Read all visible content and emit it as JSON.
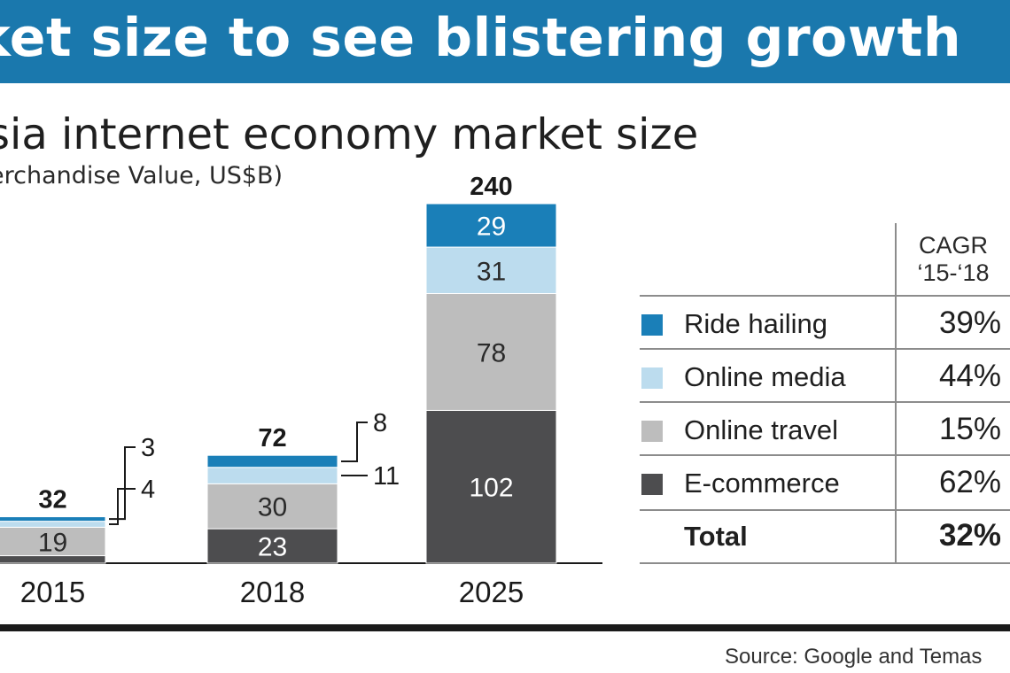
{
  "header": {
    "title": "ket size to see blistering growth"
  },
  "subtitle": "sia internet economy market size",
  "unit_label": "erchandise Value, US$B)",
  "colors": {
    "ride_hailing": "#1a7fb8",
    "online_media": "#bcdcee",
    "online_travel": "#bdbdbd",
    "e_commerce": "#4d4d4f",
    "banner": "#1a78ad"
  },
  "chart_data": {
    "type": "bar",
    "stacked": true,
    "categories": [
      "2015",
      "2018",
      "2025"
    ],
    "series": [
      {
        "name": "E-commerce",
        "values": [
          5,
          23,
          102
        ]
      },
      {
        "name": "Online travel",
        "values": [
          19,
          30,
          78
        ]
      },
      {
        "name": "Online media",
        "values": [
          4,
          11,
          31
        ]
      },
      {
        "name": "Ride hailing",
        "values": [
          3,
          8,
          29
        ]
      }
    ],
    "totals": [
      "32",
      "72",
      "240"
    ],
    "segment_labels": [
      [
        "",
        "19",
        "",
        ""
      ],
      [
        "23",
        "30",
        "",
        ""
      ],
      [
        "102",
        "78",
        "31",
        "29"
      ]
    ],
    "callouts": [
      {
        "category": "2015",
        "series": "Ride hailing",
        "label": "3"
      },
      {
        "category": "2015",
        "series": "Online media",
        "label": "4"
      },
      {
        "category": "2018",
        "series": "Ride hailing",
        "label": "8"
      },
      {
        "category": "2018",
        "series": "Online media",
        "label": "11"
      }
    ],
    "ylim": [
      0,
      240
    ],
    "grid": false,
    "legend": "right"
  },
  "legend_table": {
    "column_header_line1": "CAGR",
    "column_header_line2": "‘15-‘18",
    "rows": [
      {
        "label": "Ride hailing",
        "value": "39%"
      },
      {
        "label": "Online media",
        "value": "44%"
      },
      {
        "label": "Online travel",
        "value": "15%"
      },
      {
        "label": "E-commerce",
        "value": "62%"
      }
    ],
    "total": {
      "label": "Total",
      "value": "32%"
    }
  },
  "source": "Source: Google and Temas"
}
